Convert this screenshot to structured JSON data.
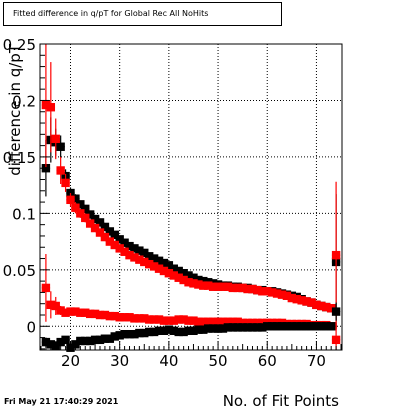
{
  "title": "Fitted difference in q/pT for Global Rec All NoHits",
  "date_stamp": "Fri May 21 17:40:29 2021",
  "colors": {
    "black_series": "#000000",
    "red_series": "#ff0000",
    "frame": "#000000",
    "grid": "#000000"
  },
  "chart_data": {
    "type": "scatter",
    "title": "Fitted difference in q/pT for Global Rec All NoHits",
    "xlabel": "No. of Fit Points",
    "ylabel": "difference in q/pT",
    "xlim": [
      13.8,
      75.2
    ],
    "ylim": [
      -0.021,
      0.25
    ],
    "xticks": [
      20,
      30,
      40,
      50,
      60,
      70
    ],
    "yticks": [
      0,
      0.05,
      0.1,
      0.15,
      0.2,
      0.25
    ],
    "ytick_labels": [
      "0",
      "0.05",
      "0.1",
      "0.15",
      "0.2",
      "0.25"
    ],
    "grid": true,
    "series": [
      {
        "color": "#000000",
        "x": [
          15,
          16,
          17,
          18,
          19,
          20,
          21,
          22,
          23,
          24,
          25,
          26,
          27,
          28,
          29,
          30,
          31,
          32,
          33,
          34,
          35,
          36,
          37,
          38,
          39,
          40,
          41,
          42,
          43,
          44,
          45,
          46,
          47,
          48,
          49,
          50,
          51,
          52,
          53,
          54,
          55,
          56,
          57,
          58,
          59,
          60,
          61,
          62,
          63,
          64,
          65,
          66,
          67,
          68,
          69,
          70,
          71,
          72,
          73,
          74
        ],
        "y": [
          0.14,
          0.165,
          0.163,
          0.159,
          0.133,
          0.118,
          0.113,
          0.108,
          0.104,
          0.099,
          0.095,
          0.092,
          0.088,
          0.084,
          0.081,
          0.077,
          0.074,
          0.071,
          0.069,
          0.067,
          0.065,
          0.062,
          0.06,
          0.058,
          0.056,
          0.054,
          0.051,
          0.049,
          0.047,
          0.045,
          0.043,
          0.041,
          0.04,
          0.039,
          0.038,
          0.037,
          0.036,
          0.036,
          0.035,
          0.035,
          0.034,
          0.034,
          0.033,
          0.032,
          0.032,
          0.031,
          0.031,
          0.03,
          0.029,
          0.028,
          0.027,
          0.026,
          0.024,
          0.022,
          0.021,
          0.019,
          0.018,
          0.017,
          0.016,
          0.057
        ],
        "err": [
          0.025,
          0.02,
          0.012,
          0.01,
          0.006,
          0.005,
          0.004,
          0.003,
          0.003,
          0.003,
          0.003,
          0.002,
          0.002,
          0.002,
          0.002,
          0.002,
          0.002,
          0.002,
          0.002,
          0.002,
          0.002,
          0.002,
          0.002,
          0.002,
          0.002,
          0.002,
          0.002,
          0.002,
          0.002,
          0.002,
          0.002,
          0.002,
          0.002,
          0.002,
          0.002,
          0.002,
          0.002,
          0.002,
          0.002,
          0.002,
          0.002,
          0.002,
          0.002,
          0.002,
          0.002,
          0.002,
          0.002,
          0.002,
          0.002,
          0.002,
          0.002,
          0.002,
          0.002,
          0.002,
          0.002,
          0.002,
          0.002,
          0.002,
          0.002,
          0.06
        ]
      },
      {
        "color": "#ff0000",
        "x": [
          15,
          16,
          17,
          18,
          19,
          20,
          21,
          22,
          23,
          24,
          25,
          26,
          27,
          28,
          29,
          30,
          31,
          32,
          33,
          34,
          35,
          36,
          37,
          38,
          39,
          40,
          41,
          42,
          43,
          44,
          45,
          46,
          47,
          48,
          49,
          50,
          51,
          52,
          53,
          54,
          55,
          56,
          57,
          58,
          59,
          60,
          61,
          62,
          63,
          64,
          65,
          66,
          67,
          68,
          69,
          70,
          71,
          72,
          73,
          74
        ],
        "y": [
          0.196,
          0.194,
          0.166,
          0.138,
          0.127,
          0.112,
          0.105,
          0.1,
          0.096,
          0.091,
          0.087,
          0.083,
          0.079,
          0.075,
          0.072,
          0.069,
          0.066,
          0.063,
          0.061,
          0.059,
          0.057,
          0.055,
          0.053,
          0.051,
          0.049,
          0.047,
          0.045,
          0.043,
          0.041,
          0.039,
          0.038,
          0.037,
          0.036,
          0.036,
          0.035,
          0.035,
          0.035,
          0.035,
          0.034,
          0.034,
          0.034,
          0.033,
          0.033,
          0.032,
          0.031,
          0.031,
          0.03,
          0.029,
          0.028,
          0.027,
          0.025,
          0.024,
          0.023,
          0.022,
          0.021,
          0.019,
          0.018,
          0.017,
          0.016,
          0.063
        ],
        "err": [
          0.055,
          0.04,
          0.018,
          0.012,
          0.008,
          0.006,
          0.005,
          0.004,
          0.004,
          0.003,
          0.003,
          0.003,
          0.003,
          0.002,
          0.002,
          0.002,
          0.002,
          0.002,
          0.002,
          0.002,
          0.002,
          0.002,
          0.002,
          0.002,
          0.002,
          0.002,
          0.002,
          0.002,
          0.002,
          0.002,
          0.002,
          0.002,
          0.002,
          0.002,
          0.002,
          0.002,
          0.002,
          0.002,
          0.002,
          0.002,
          0.002,
          0.002,
          0.002,
          0.002,
          0.002,
          0.002,
          0.002,
          0.002,
          0.002,
          0.002,
          0.002,
          0.002,
          0.002,
          0.002,
          0.002,
          0.002,
          0.002,
          0.002,
          0.002,
          0.065
        ]
      },
      {
        "color": "#ff0000",
        "x": [
          15,
          16,
          17,
          18,
          19,
          20,
          21,
          22,
          23,
          24,
          25,
          26,
          27,
          28,
          29,
          30,
          31,
          32,
          33,
          34,
          35,
          36,
          37,
          38,
          39,
          40,
          41,
          42,
          43,
          44,
          45,
          46,
          47,
          48,
          49,
          50,
          51,
          52,
          53,
          54,
          55,
          56,
          57,
          58,
          59,
          60,
          61,
          62,
          63,
          64,
          65,
          66,
          67,
          68,
          69,
          70,
          71,
          72,
          73,
          74
        ],
        "y": [
          0.034,
          0.019,
          0.018,
          0.014,
          0.012,
          0.013,
          0.013,
          0.012,
          0.012,
          0.011,
          0.011,
          0.01,
          0.01,
          0.009,
          0.009,
          0.008,
          0.008,
          0.008,
          0.007,
          0.007,
          0.007,
          0.006,
          0.006,
          0.006,
          0.005,
          0.005,
          0.005,
          0.006,
          0.006,
          0.005,
          0.005,
          0.004,
          0.004,
          0.004,
          0.004,
          0.004,
          0.004,
          0.004,
          0.004,
          0.004,
          0.003,
          0.003,
          0.003,
          0.003,
          0.003,
          0.003,
          0.003,
          0.003,
          0.003,
          0.002,
          0.002,
          0.002,
          0.002,
          0.002,
          0.001,
          0.001,
          0.001,
          0.001,
          0.0,
          -0.012
        ],
        "err": [
          0.03,
          0.012,
          0.008,
          0.004,
          0.003,
          0.002,
          0.002,
          0.002,
          0.002,
          0.001,
          0.001,
          0.001,
          0.001,
          0.001,
          0.001,
          0.001,
          0.001,
          0.001,
          0.001,
          0.001,
          0.001,
          0.001,
          0.001,
          0.001,
          0.001,
          0.001,
          0.001,
          0.001,
          0.001,
          0.001,
          0.001,
          0.001,
          0.001,
          0.001,
          0.001,
          0.001,
          0.001,
          0.001,
          0.001,
          0.001,
          0.001,
          0.001,
          0.001,
          0.001,
          0.001,
          0.001,
          0.001,
          0.001,
          0.001,
          0.001,
          0.001,
          0.001,
          0.001,
          0.001,
          0.001,
          0.001,
          0.001,
          0.001,
          0.001,
          0.015
        ]
      },
      {
        "color": "#000000",
        "x": [
          15,
          16,
          17,
          18,
          19,
          20,
          21,
          22,
          23,
          24,
          25,
          26,
          27,
          28,
          29,
          30,
          31,
          32,
          33,
          34,
          35,
          36,
          37,
          38,
          39,
          40,
          41,
          42,
          43,
          44,
          45,
          46,
          47,
          48,
          49,
          50,
          51,
          52,
          53,
          54,
          55,
          56,
          57,
          58,
          59,
          60,
          61,
          62,
          63,
          64,
          65,
          66,
          67,
          68,
          69,
          70,
          71,
          72,
          73,
          74
        ],
        "y": [
          -0.014,
          -0.016,
          -0.017,
          -0.014,
          -0.012,
          -0.019,
          -0.016,
          -0.013,
          -0.013,
          -0.013,
          -0.012,
          -0.012,
          -0.011,
          -0.011,
          -0.009,
          -0.008,
          -0.007,
          -0.007,
          -0.007,
          -0.006,
          -0.006,
          -0.005,
          -0.005,
          -0.004,
          -0.004,
          -0.003,
          -0.004,
          -0.005,
          -0.005,
          -0.004,
          -0.004,
          -0.003,
          -0.003,
          -0.002,
          -0.002,
          -0.002,
          -0.002,
          -0.001,
          -0.001,
          -0.001,
          -0.001,
          -0.001,
          -0.001,
          -0.001,
          -0.001,
          0.0,
          0.0,
          0.0,
          0.0,
          0.0,
          0.0,
          0.0,
          0.0,
          0.0,
          0.0,
          0.0,
          0.0,
          0.0,
          0.0,
          0.013
        ],
        "err": [
          0.004,
          0.003,
          0.003,
          0.002,
          0.002,
          0.002,
          0.002,
          0.001,
          0.001,
          0.001,
          0.001,
          0.001,
          0.001,
          0.001,
          0.001,
          0.001,
          0.001,
          0.001,
          0.001,
          0.001,
          0.001,
          0.001,
          0.001,
          0.001,
          0.001,
          0.001,
          0.001,
          0.001,
          0.001,
          0.001,
          0.001,
          0.001,
          0.001,
          0.001,
          0.001,
          0.001,
          0.001,
          0.001,
          0.001,
          0.001,
          0.001,
          0.001,
          0.001,
          0.001,
          0.001,
          0.001,
          0.001,
          0.001,
          0.001,
          0.001,
          0.001,
          0.001,
          0.001,
          0.001,
          0.001,
          0.001,
          0.001,
          0.001,
          0.001,
          0.008
        ]
      }
    ]
  }
}
